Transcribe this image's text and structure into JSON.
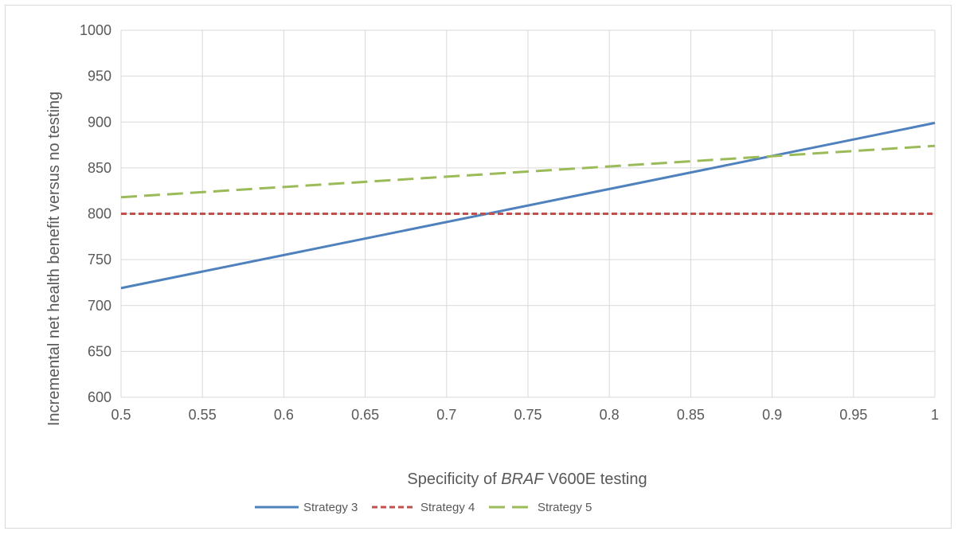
{
  "chart_data": {
    "type": "line",
    "title": "",
    "xlabel": {
      "prefix": "Specificity of ",
      "italic": "BRAF",
      "suffix": " V600E testing"
    },
    "ylabel": "Incremental net health benefit versus no testing",
    "xlim": [
      0.5,
      1
    ],
    "ylim": [
      600,
      1000
    ],
    "x_ticks": [
      "0.5",
      "0.55",
      "0.6",
      "0.65",
      "0.7",
      "0.75",
      "0.8",
      "0.85",
      "0.9",
      "0.95",
      "1"
    ],
    "y_ticks": [
      "600",
      "650",
      "700",
      "750",
      "800",
      "850",
      "900",
      "950",
      "1000"
    ],
    "grid": true,
    "legend_position": "bottom",
    "series": [
      {
        "name": "Strategy 3",
        "color": "#4f81bd",
        "dash": "solid",
        "x": [
          0.5,
          1
        ],
        "y": [
          719,
          899
        ]
      },
      {
        "name": "Strategy 4",
        "color": "#c0504d",
        "dash": "short-dash",
        "x": [
          0.5,
          1
        ],
        "y": [
          800,
          800
        ]
      },
      {
        "name": "Strategy 5",
        "color": "#9bbb59",
        "dash": "long-dash",
        "x": [
          0.5,
          1
        ],
        "y": [
          818,
          874
        ]
      }
    ]
  }
}
